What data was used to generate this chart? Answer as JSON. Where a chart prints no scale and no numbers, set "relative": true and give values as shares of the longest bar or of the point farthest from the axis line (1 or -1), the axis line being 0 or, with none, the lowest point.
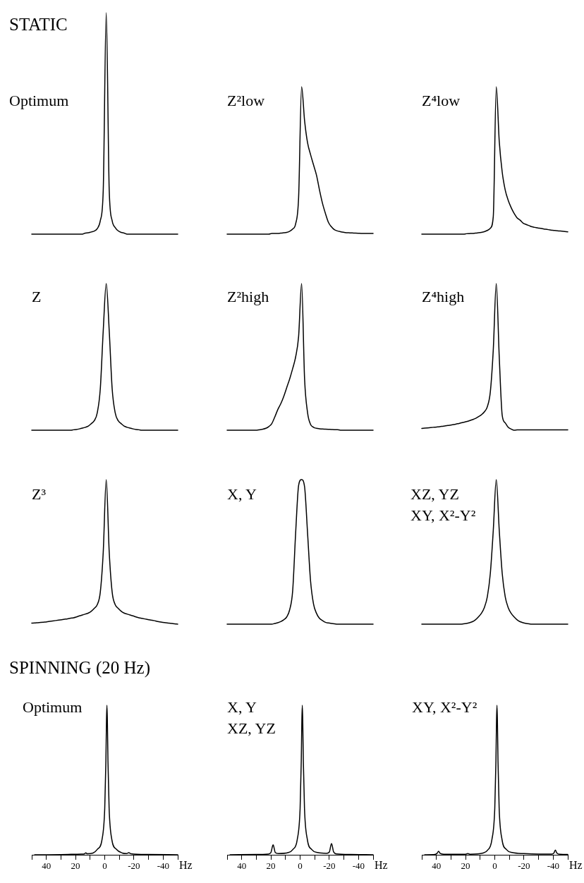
{
  "chart_data": [
    {
      "type": "line",
      "title": "Optimum",
      "annotations": [
        "STATIC"
      ],
      "relative": true,
      "tick_labels": false,
      "color": "#000000",
      "categories": [
        null,
        null,
        null,
        null,
        null,
        null,
        null,
        null,
        null,
        null,
        null,
        null,
        null,
        null,
        null,
        null,
        null,
        null,
        null,
        null,
        null,
        null,
        null,
        null,
        null,
        null,
        null,
        null,
        null,
        null,
        null,
        null,
        null,
        null,
        null,
        null,
        null,
        null,
        null,
        null,
        null,
        null,
        null,
        null,
        null,
        null,
        null,
        null,
        null,
        null
      ],
      "values": [
        0,
        0,
        0,
        0,
        0,
        0,
        0,
        0,
        0,
        0,
        0,
        0,
        0,
        0,
        0,
        0,
        0,
        0,
        0.005,
        0.006,
        0.01,
        0.014,
        0.025,
        0.06,
        0.2,
        1,
        0.2,
        0.06,
        0.03,
        0.015,
        0.008,
        0.005,
        0,
        0,
        0,
        0,
        0,
        0,
        0,
        0,
        0,
        0,
        0,
        0,
        0,
        0,
        0,
        0,
        0,
        0
      ]
    },
    {
      "type": "line",
      "title": "Z²low",
      "relative": true,
      "tick_labels": false,
      "color": "#000000",
      "categories": [
        null,
        null,
        null,
        null,
        null,
        null,
        null,
        null,
        null,
        null,
        null,
        null,
        null,
        null,
        null,
        null,
        null,
        null,
        null,
        null,
        null,
        null,
        null,
        null,
        null,
        null,
        null,
        null,
        null,
        null,
        null,
        null,
        null,
        null,
        null,
        null,
        null,
        null,
        null,
        null,
        null,
        null,
        null,
        null,
        null,
        null,
        null,
        null,
        null,
        null
      ],
      "values": [
        0,
        0,
        0,
        0,
        0,
        0,
        0,
        0,
        0,
        0,
        0,
        0,
        0,
        0,
        0,
        0.005,
        0.005,
        0.005,
        0.007,
        0.009,
        0.012,
        0.02,
        0.035,
        0.07,
        0.25,
        1,
        0.77,
        0.62,
        0.54,
        0.47,
        0.4,
        0.3,
        0.21,
        0.14,
        0.08,
        0.05,
        0.03,
        0.022,
        0.017,
        0.013,
        0.01,
        0.009,
        0.008,
        0.007,
        0.006,
        0.005,
        0.005,
        0.005,
        0.005,
        0.005
      ]
    },
    {
      "type": "line",
      "title": "Z⁴low",
      "relative": true,
      "tick_labels": false,
      "color": "#000000",
      "categories": [
        null,
        null,
        null,
        null,
        null,
        null,
        null,
        null,
        null,
        null,
        null,
        null,
        null,
        null,
        null,
        null,
        null,
        null,
        null,
        null,
        null,
        null,
        null,
        null,
        null,
        null,
        null,
        null,
        null,
        null,
        null,
        null,
        null,
        null,
        null,
        null,
        null,
        null,
        null,
        null,
        null,
        null,
        null,
        null,
        null,
        null,
        null,
        null,
        null,
        null
      ],
      "values": [
        0,
        0,
        0,
        0,
        0,
        0,
        0,
        0,
        0,
        0,
        0,
        0,
        0,
        0,
        0,
        0.003,
        0.004,
        0.005,
        0.007,
        0.009,
        0.012,
        0.017,
        0.025,
        0.04,
        0.12,
        1,
        0.63,
        0.42,
        0.3,
        0.23,
        0.18,
        0.14,
        0.11,
        0.095,
        0.075,
        0.066,
        0.058,
        0.05,
        0.046,
        0.042,
        0.039,
        0.035,
        0.032,
        0.029,
        0.026,
        0.024,
        0.022,
        0.02,
        0.018,
        0.016
      ]
    },
    {
      "type": "line",
      "title": "Z",
      "relative": true,
      "tick_labels": false,
      "color": "#000000",
      "categories": [
        null,
        null,
        null,
        null,
        null,
        null,
        null,
        null,
        null,
        null,
        null,
        null,
        null,
        null,
        null,
        null,
        null,
        null,
        null,
        null,
        null,
        null,
        null,
        null,
        null,
        null,
        null,
        null,
        null,
        null,
        null,
        null,
        null,
        null,
        null,
        null,
        null,
        null,
        null,
        null,
        null,
        null,
        null,
        null,
        null,
        null,
        null,
        null,
        null,
        null
      ],
      "values": [
        0,
        0,
        0,
        0,
        0,
        0,
        0,
        0,
        0,
        0,
        0,
        0,
        0,
        0,
        0.003,
        0.005,
        0.009,
        0.014,
        0.02,
        0.028,
        0.045,
        0.065,
        0.12,
        0.28,
        0.68,
        1,
        0.68,
        0.28,
        0.12,
        0.065,
        0.045,
        0.028,
        0.02,
        0.014,
        0.009,
        0.005,
        0.003,
        0,
        0,
        0,
        0,
        0,
        0,
        0,
        0,
        0,
        0,
        0,
        0,
        0
      ]
    },
    {
      "type": "line",
      "title": "Z²high",
      "relative": true,
      "tick_labels": false,
      "color": "#000000",
      "categories": [
        null,
        null,
        null,
        null,
        null,
        null,
        null,
        null,
        null,
        null,
        null,
        null,
        null,
        null,
        null,
        null,
        null,
        null,
        null,
        null,
        null,
        null,
        null,
        null,
        null,
        null,
        null,
        null,
        null,
        null,
        null,
        null,
        null,
        null,
        null,
        null,
        null,
        null,
        null,
        null,
        null,
        null,
        null,
        null,
        null,
        null,
        null,
        null,
        null,
        null
      ],
      "values": [
        0,
        0,
        0,
        0,
        0,
        0,
        0,
        0,
        0,
        0,
        0,
        0.004,
        0.007,
        0.013,
        0.025,
        0.045,
        0.09,
        0.14,
        0.18,
        0.23,
        0.29,
        0.35,
        0.42,
        0.5,
        0.64,
        1,
        0.35,
        0.12,
        0.04,
        0.02,
        0.013,
        0.01,
        0.008,
        0.007,
        0.006,
        0.005,
        0.004,
        0.004,
        0,
        0,
        0,
        0,
        0,
        0,
        0,
        0,
        0,
        0,
        0,
        0
      ]
    },
    {
      "type": "line",
      "title": "Z⁴high",
      "relative": true,
      "tick_labels": false,
      "color": "#000000",
      "categories": [
        null,
        null,
        null,
        null,
        null,
        null,
        null,
        null,
        null,
        null,
        null,
        null,
        null,
        null,
        null,
        null,
        null,
        null,
        null,
        null,
        null,
        null,
        null,
        null,
        null,
        null,
        null,
        null,
        null,
        null,
        null,
        null,
        null,
        null,
        null,
        null,
        null,
        null,
        null,
        null,
        null,
        null,
        null,
        null,
        null,
        null,
        null,
        null,
        null,
        null
      ],
      "values": [
        0.012,
        0.014,
        0.016,
        0.018,
        0.02,
        0.022,
        0.024,
        0.027,
        0.03,
        0.033,
        0.036,
        0.04,
        0.044,
        0.049,
        0.054,
        0.059,
        0.065,
        0.072,
        0.08,
        0.092,
        0.105,
        0.125,
        0.16,
        0.26,
        0.55,
        1,
        0.5,
        0.1,
        0.05,
        0.02,
        0.008,
        0,
        0.002,
        0.003,
        0.003,
        0.002,
        0.002,
        0.002,
        0.002,
        0.002,
        0.002,
        0.002,
        0.002,
        0.002,
        0.002,
        0.002,
        0.002,
        0.002,
        0.002,
        0.002
      ]
    },
    {
      "type": "line",
      "title": "Z³",
      "relative": true,
      "tick_labels": false,
      "color": "#000000",
      "categories": [
        null,
        null,
        null,
        null,
        null,
        null,
        null,
        null,
        null,
        null,
        null,
        null,
        null,
        null,
        null,
        null,
        null,
        null,
        null,
        null,
        null,
        null,
        null,
        null,
        null,
        null,
        null,
        null,
        null,
        null,
        null,
        null,
        null,
        null,
        null,
        null,
        null,
        null,
        null,
        null,
        null,
        null,
        null,
        null,
        null,
        null,
        null,
        null,
        null,
        null
      ],
      "values": [
        0.007,
        0.008,
        0.01,
        0.012,
        0.014,
        0.016,
        0.019,
        0.022,
        0.025,
        0.028,
        0.031,
        0.034,
        0.037,
        0.041,
        0.044,
        0.05,
        0.057,
        0.063,
        0.07,
        0.077,
        0.09,
        0.11,
        0.135,
        0.22,
        0.5,
        1,
        0.5,
        0.22,
        0.135,
        0.11,
        0.09,
        0.077,
        0.07,
        0.063,
        0.057,
        0.05,
        0.044,
        0.04,
        0.036,
        0.032,
        0.028,
        0.025,
        0.02,
        0.016,
        0.012,
        0.01,
        0.007,
        0.005,
        0.002,
        0
      ]
    },
    {
      "type": "line",
      "title": "X, Y",
      "relative": true,
      "tick_labels": false,
      "color": "#000000",
      "categories": [
        null,
        null,
        null,
        null,
        null,
        null,
        null,
        null,
        null,
        null,
        null,
        null,
        null,
        null,
        null,
        null,
        null,
        null,
        null,
        null,
        null,
        null,
        null,
        null,
        null,
        null,
        null,
        null,
        null,
        null,
        null,
        null,
        null,
        null,
        null,
        null,
        null,
        null,
        null,
        null,
        null,
        null,
        null,
        null,
        null,
        null,
        null,
        null,
        null,
        null
      ],
      "values": [
        0,
        0,
        0,
        0,
        0,
        0,
        0,
        0,
        0,
        0,
        0,
        0,
        0,
        0,
        0,
        0,
        0.005,
        0.01,
        0.018,
        0.03,
        0.05,
        0.1,
        0.23,
        0.63,
        0.96,
        1,
        0.95,
        0.63,
        0.3,
        0.14,
        0.075,
        0.04,
        0.025,
        0.013,
        0.008,
        0.005,
        0.003,
        0,
        0,
        0,
        0,
        0,
        0,
        0,
        0,
        0,
        0,
        0,
        0,
        0
      ]
    },
    {
      "type": "line",
      "title": "XZ, YZ\nXY, X²-Y²",
      "relative": true,
      "tick_labels": false,
      "color": "#000000",
      "categories": [
        null,
        null,
        null,
        null,
        null,
        null,
        null,
        null,
        null,
        null,
        null,
        null,
        null,
        null,
        null,
        null,
        null,
        null,
        null,
        null,
        null,
        null,
        null,
        null,
        null,
        null,
        null,
        null,
        null,
        null,
        null,
        null,
        null,
        null,
        null,
        null,
        null,
        null,
        null,
        null,
        null,
        null,
        null,
        null,
        null,
        null,
        null,
        null,
        null,
        null
      ],
      "values": [
        0,
        0,
        0,
        0,
        0,
        0,
        0,
        0,
        0,
        0,
        0,
        0,
        0,
        0,
        0.002,
        0.005,
        0.01,
        0.017,
        0.03,
        0.05,
        0.075,
        0.115,
        0.19,
        0.35,
        0.65,
        1,
        0.65,
        0.35,
        0.19,
        0.115,
        0.075,
        0.05,
        0.03,
        0.017,
        0.01,
        0.005,
        0.002,
        0,
        0,
        0,
        0,
        0,
        0,
        0,
        0,
        0,
        0,
        0,
        0,
        0
      ]
    },
    {
      "type": "line",
      "title": "Optimum",
      "annotations": [
        "SPINNING (20 Hz)"
      ],
      "relative": true,
      "xlim": [
        50,
        -50
      ],
      "xlabel": "Hz",
      "color": "#000000",
      "xticks": [
        {
          "value": 50,
          "label": null
        },
        40,
        {
          "value": 30,
          "label": null
        },
        20,
        {
          "value": 10,
          "label": null
        },
        0,
        {
          "value": -10,
          "label": null
        },
        -20,
        {
          "value": -30,
          "label": null
        },
        -40,
        {
          "value": -50,
          "label": null
        }
      ],
      "x": [
        48,
        30,
        16,
        14,
        13,
        12,
        8,
        5,
        1.9,
        0,
        -0.8,
        -1.2,
        -1.5,
        -1.8,
        -2.2,
        -3,
        -4.9,
        -8,
        -12,
        -15,
        -16.5,
        -18,
        -30,
        -50
      ],
      "values": [
        0,
        0.001,
        0.005,
        0.006,
        0.013,
        0.007,
        0.012,
        0.037,
        0.1,
        0.31,
        0.63,
        0.9,
        1,
        0.9,
        0.63,
        0.31,
        0.1,
        0.037,
        0.012,
        0.008,
        0.014,
        0.007,
        0.002,
        0
      ]
    },
    {
      "type": "line",
      "title": "X, Y\nXZ, YZ",
      "relative": true,
      "xlim": [
        50,
        -50
      ],
      "xlabel": "Hz",
      "color": "#000000",
      "xticks": [
        {
          "value": 50,
          "label": null
        },
        40,
        {
          "value": 30,
          "label": null
        },
        20,
        {
          "value": 10,
          "label": null
        },
        0,
        {
          "value": -10,
          "label": null
        },
        -20,
        {
          "value": -30,
          "label": null
        },
        -40,
        {
          "value": -50,
          "label": null
        }
      ],
      "x": [
        48,
        30,
        22,
        20,
        18.5,
        17,
        15,
        8,
        5,
        2,
        0,
        -0.8,
        -1.2,
        -1.5,
        -1.8,
        -2.2,
        -3,
        -5,
        -8,
        -12,
        -18,
        -20,
        -21.5,
        -23,
        -25,
        -35,
        -50
      ],
      "values": [
        0,
        0.002,
        0.005,
        0.015,
        0.067,
        0.015,
        0.008,
        0.015,
        0.035,
        0.1,
        0.31,
        0.63,
        0.9,
        1,
        0.9,
        0.63,
        0.31,
        0.1,
        0.035,
        0.015,
        0.01,
        0.018,
        0.075,
        0.018,
        0.006,
        0.002,
        0
      ]
    },
    {
      "type": "line",
      "title": "XY, X²-Y²",
      "relative": true,
      "xlim": [
        50,
        -50
      ],
      "xlabel": "Hz",
      "color": "#000000",
      "xticks": [
        {
          "value": 50,
          "label": null
        },
        40,
        {
          "value": 30,
          "label": null
        },
        20,
        {
          "value": 10,
          "label": null
        },
        0,
        {
          "value": -10,
          "label": null
        },
        -20,
        {
          "value": -30,
          "label": null
        },
        -40,
        {
          "value": -50,
          "label": null
        }
      ],
      "x": [
        48,
        41,
        39.5,
        38.5,
        37.5,
        35,
        20,
        18.5,
        17,
        8,
        5,
        2,
        0,
        -0.8,
        -1.2,
        -1.5,
        -1.8,
        -2.2,
        -3,
        -5,
        -8,
        -12,
        -20,
        -30,
        -39,
        -40.5,
        -41.5,
        -42.5,
        -45,
        -50
      ],
      "values": [
        0,
        0.002,
        0.01,
        0.024,
        0.01,
        0.004,
        0.004,
        0.008,
        0.004,
        0.012,
        0.03,
        0.1,
        0.31,
        0.63,
        0.9,
        1,
        0.9,
        0.63,
        0.31,
        0.1,
        0.035,
        0.015,
        0.008,
        0.005,
        0.005,
        0.012,
        0.032,
        0.012,
        0.003,
        0.002
      ]
    }
  ]
}
